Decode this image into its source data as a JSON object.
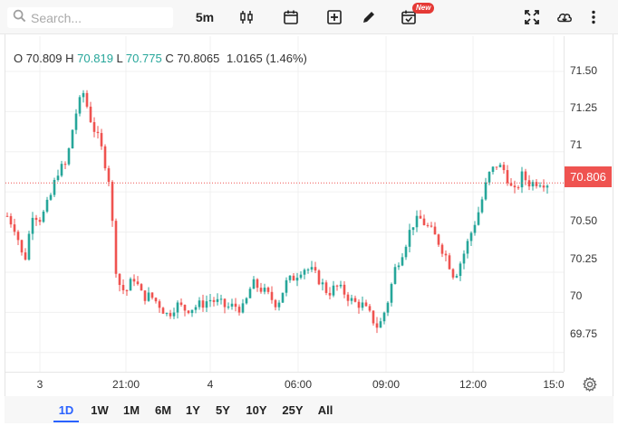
{
  "toolbar": {
    "search_placeholder": "Search...",
    "interval": "5m",
    "new_badge": "New"
  },
  "legend": {
    "o_label": "O",
    "o_value": "70.809",
    "h_label": "H",
    "h_value": "70.819",
    "l_label": "L",
    "l_value": "70.775",
    "c_label": "C",
    "c_value": "70.8065",
    "change": "1.0165 (1.46%)"
  },
  "price_axis": {
    "ticks": [
      "71.50",
      "71.25",
      "71",
      "70.50",
      "70.25",
      "70",
      "69.75"
    ],
    "last_price": "70.806"
  },
  "time_axis": {
    "labels": [
      "3",
      "21:00",
      "4",
      "06:00",
      "09:00",
      "12:00",
      "15:0"
    ]
  },
  "ranges": [
    "1D",
    "1W",
    "1M",
    "6M",
    "1Y",
    "5Y",
    "10Y",
    "25Y",
    "All"
  ],
  "active_range": "1D",
  "colors": {
    "up": "#26a69a",
    "down": "#ef5350",
    "active": "#2962ff",
    "last_price_bg": "#ef5350"
  },
  "chart_data": {
    "type": "candlestick",
    "y_range": [
      69.63,
      71.72
    ],
    "last_price": 70.806,
    "y_ticks": [
      71.5,
      71.25,
      71.0,
      70.75,
      70.5,
      70.25,
      70.0,
      69.75
    ],
    "x_tick_labels": [
      "3",
      "21:00",
      "4",
      "06:00",
      "09:00",
      "12:00",
      "15:0"
    ],
    "series": [
      {
        "name": "close",
        "values": [
          70.6,
          70.52,
          70.3,
          70.62,
          70.58,
          70.7,
          70.88,
          70.92,
          71.22,
          71.37,
          71.18,
          71.05,
          70.85,
          70.2,
          70.12,
          70.22,
          70.1,
          70.1,
          70.05,
          69.98,
          70.05,
          70.02,
          70.03,
          70.05,
          70.08,
          70.06,
          70.03,
          70.04,
          70.02,
          70.18,
          70.15,
          70.1,
          70.05,
          70.18,
          70.22,
          70.28,
          70.26,
          70.2,
          70.12,
          70.16,
          70.12,
          70.06,
          70.05,
          69.98,
          69.9,
          70.05,
          70.28,
          70.4,
          70.55,
          70.58,
          70.52,
          70.45,
          70.35,
          70.22,
          70.35,
          70.5,
          70.65,
          70.85,
          70.92,
          70.88,
          70.73,
          70.85,
          70.8,
          70.82,
          70.806
        ]
      }
    ]
  }
}
